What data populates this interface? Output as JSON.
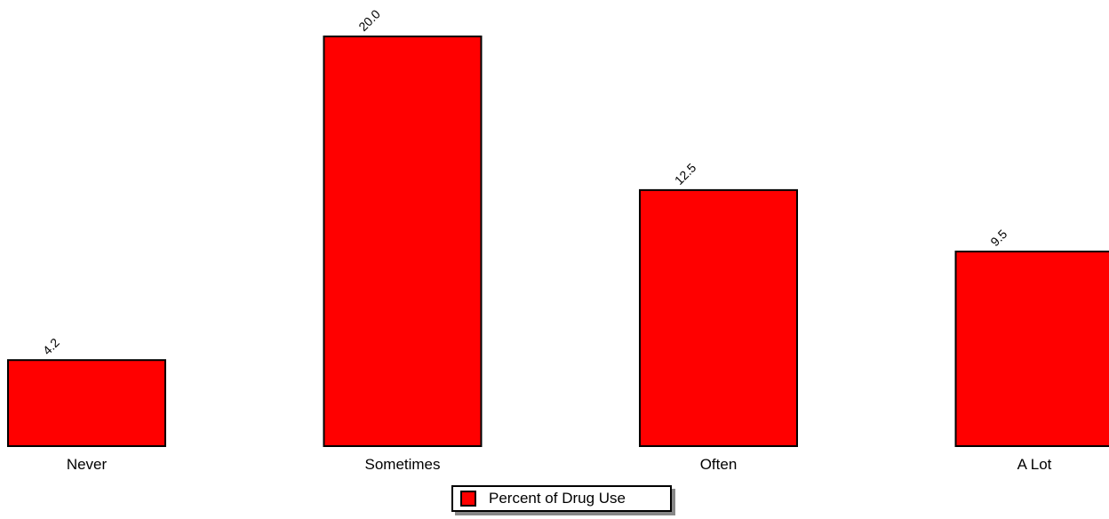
{
  "chart_data": {
    "type": "bar",
    "title": "",
    "xlabel": "",
    "ylabel": "",
    "categories": [
      "Never",
      "Sometimes",
      "Often",
      "A Lot"
    ],
    "series": [
      {
        "name": "Percent of Drug Use",
        "values": [
          4.2,
          20.0,
          12.5,
          9.5
        ],
        "value_labels": [
          "4.2",
          "20.0",
          "12.5",
          "9.5"
        ],
        "color": "#ff0000"
      }
    ],
    "ylim": [
      0,
      20
    ],
    "grid": false,
    "y_axis_visible": false,
    "legend_position": "bottom-center"
  },
  "colors": {
    "bar_fill": "#ff0000",
    "bar_stroke": "#000000",
    "legend_shadow": "#888888"
  }
}
